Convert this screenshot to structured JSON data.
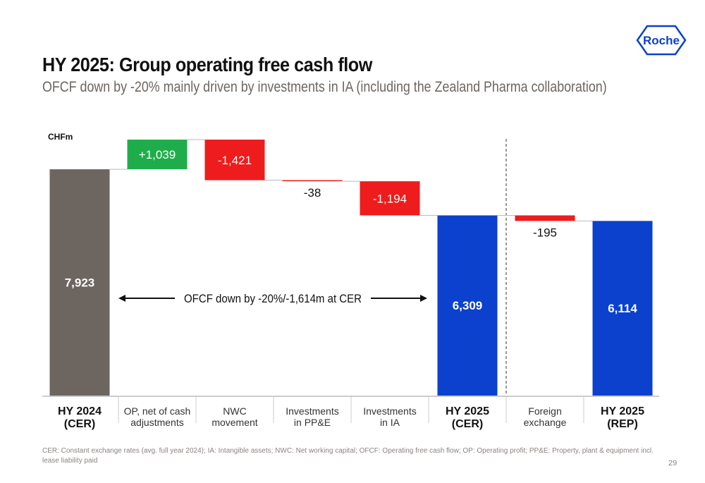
{
  "title": "HY 2025: Group operating free cash flow",
  "subtitle": "OFCF down by -20% mainly driven by investments in IA (including the Zealand Pharma collaboration)",
  "logo": "Roche",
  "footnote": "CER: Constant exchange rates (avg. full year 2024); IA: Intangible assets; NWC: Net working capital; OFCF: Operating free cash flow; OP: Operating profit; PP&E: Property, plant & equipment incl. lease liability paid",
  "page_number": "29",
  "chart_data": {
    "type": "waterfall",
    "unit_label": "CHFm",
    "categories": [
      "HY 2024\n(CER)",
      "OP, net of cash\nadjustments",
      "NWC\nmovement",
      "Investments\nin PP&E",
      "Investments\nin IA",
      "HY 2025\n(CER)",
      "Foreign\nexchange",
      "HY 2025\n(REP)"
    ],
    "measures": [
      "total",
      "relative",
      "relative",
      "relative",
      "relative",
      "total",
      "relative",
      "total"
    ],
    "values": [
      7923,
      1039,
      -1421,
      -38,
      -1194,
      6309,
      -195,
      6114
    ],
    "value_labels": [
      "7,923",
      "+1,039",
      "-1,421",
      "-38",
      "-1,194",
      "6,309",
      "-195",
      "6,114"
    ],
    "colors": [
      "#6d6560",
      "#1fad4b",
      "#ee1c1c",
      "#ee1c1c",
      "#ee1c1c",
      "#0b41cd",
      "#ee1c1c",
      "#0b41cd"
    ],
    "annotation": "OFCF down by -20%/-1,614m at CER"
  }
}
